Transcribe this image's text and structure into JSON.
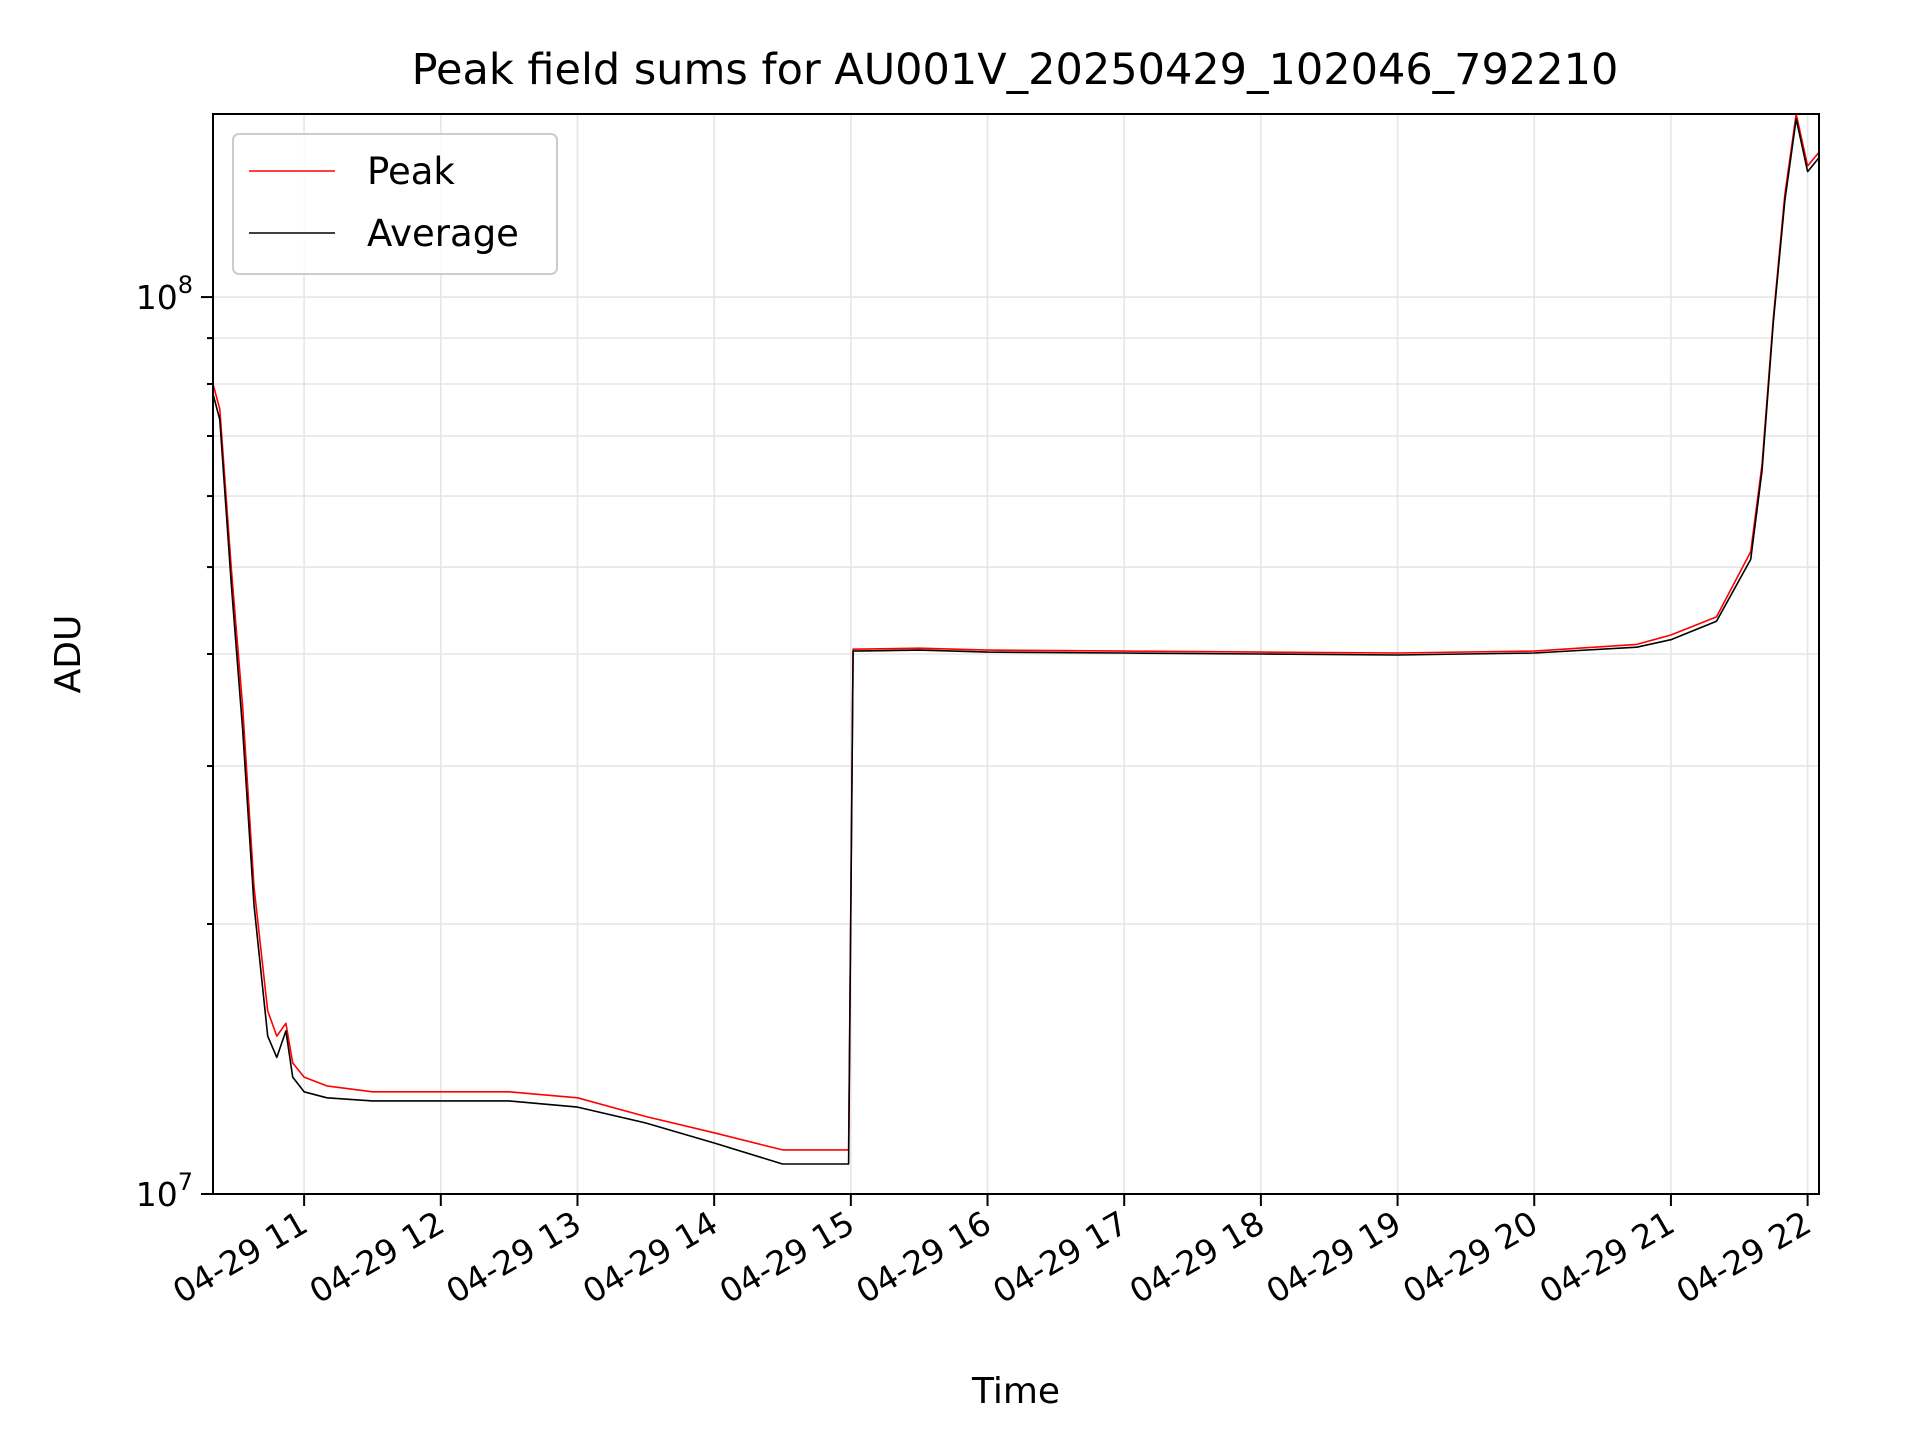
{
  "chart_data": {
    "type": "line",
    "title": "Peak field sums for AU001V_20250429_102046_792210",
    "xlabel": "Time",
    "ylabel": "ADU",
    "yscale": "log",
    "ylim": [
      10000000,
      160000000
    ],
    "xlim": [
      "04-29 10:20",
      "04-29 22:05"
    ],
    "x_tick_labels": [
      "04-29 11",
      "04-29 12",
      "04-29 13",
      "04-29 14",
      "04-29 15",
      "04-29 16",
      "04-29 17",
      "04-29 18",
      "04-29 19",
      "04-29 20",
      "04-29 21",
      "04-29 22"
    ],
    "y_tick_labels": [
      {
        "value": 10000000,
        "base": "10",
        "exp": "7"
      },
      {
        "value": 100000000,
        "base": "10",
        "exp": "8"
      }
    ],
    "grid": true,
    "legend_position": "upper-left",
    "series": [
      {
        "name": "Peak",
        "color": "#ff0000",
        "x": [
          "04-29 10:20",
          "04-29 10:23",
          "04-29 10:28",
          "04-29 10:33",
          "04-29 10:38",
          "04-29 10:44",
          "04-29 10:48",
          "04-29 10:52",
          "04-29 10:55",
          "04-29 11:00",
          "04-29 11:10",
          "04-29 11:30",
          "04-29 12:00",
          "04-29 12:30",
          "04-29 13:00",
          "04-29 13:30",
          "04-29 14:00",
          "04-29 14:30",
          "04-29 14:59",
          "04-29 15:01",
          "04-29 15:30",
          "04-29 16:00",
          "04-29 17:00",
          "04-29 18:00",
          "04-29 19:00",
          "04-29 20:00",
          "04-29 20:45",
          "04-29 21:00",
          "04-29 21:20",
          "04-29 21:35",
          "04-29 21:40",
          "04-29 21:45",
          "04-29 21:50",
          "04-29 21:55",
          "04-29 22:00",
          "04-29 22:05"
        ],
        "y": [
          80000000,
          75000000,
          50000000,
          35000000,
          22000000,
          16000000,
          15000000,
          15500000,
          14000000,
          13500000,
          13200000,
          13000000,
          13000000,
          13000000,
          12800000,
          12200000,
          11700000,
          11200000,
          11200000,
          40500000,
          40600000,
          40400000,
          40300000,
          40200000,
          40100000,
          40300000,
          41000000,
          42000000,
          44000000,
          52000000,
          65000000,
          95000000,
          130000000,
          160000000,
          140000000,
          145000000
        ]
      },
      {
        "name": "Average",
        "color": "#000000",
        "x": [
          "04-29 10:20",
          "04-29 10:23",
          "04-29 10:28",
          "04-29 10:33",
          "04-29 10:38",
          "04-29 10:44",
          "04-29 10:48",
          "04-29 10:52",
          "04-29 10:55",
          "04-29 11:00",
          "04-29 11:10",
          "04-29 11:30",
          "04-29 12:00",
          "04-29 12:30",
          "04-29 13:00",
          "04-29 13:30",
          "04-29 14:00",
          "04-29 14:30",
          "04-29 14:59",
          "04-29 15:01",
          "04-29 15:30",
          "04-29 16:00",
          "04-29 17:00",
          "04-29 18:00",
          "04-29 19:00",
          "04-29 20:00",
          "04-29 20:45",
          "04-29 21:00",
          "04-29 21:20",
          "04-29 21:35",
          "04-29 21:40",
          "04-29 21:45",
          "04-29 21:50",
          "04-29 21:55",
          "04-29 22:00",
          "04-29 22:05"
        ],
        "y": [
          78000000,
          73000000,
          48000000,
          33000000,
          21000000,
          15000000,
          14200000,
          15200000,
          13500000,
          13000000,
          12800000,
          12700000,
          12700000,
          12700000,
          12500000,
          12000000,
          11400000,
          10800000,
          10800000,
          40300000,
          40400000,
          40200000,
          40100000,
          40000000,
          39900000,
          40100000,
          40700000,
          41500000,
          43500000,
          51000000,
          64000000,
          94000000,
          128000000,
          158000000,
          138000000,
          143000000
        ]
      }
    ]
  }
}
